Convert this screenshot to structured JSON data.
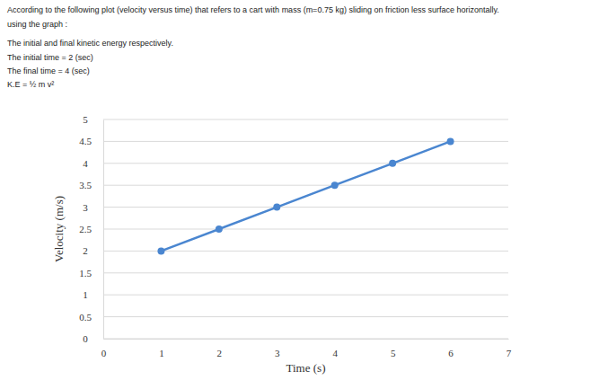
{
  "chart_data": {
    "type": "line",
    "annotations": [
      "According to the following plot (velocity versus time) that refers to a cart with mass (m=0.75 kg) sliding on friction less surface horizontally.",
      "using the graph :",
      "The initial and final kinetic energy respectively.",
      "The initial time = 2 (sec)",
      "The final time = 4 (sec)",
      "K.E = ½ m v²"
    ],
    "x_label": "Time (s)",
    "y_label": "Velocity (m/s)",
    "series": [
      {
        "name": "Velocity",
        "color": "#4a86d0",
        "marker": "circle",
        "x": [
          1,
          2,
          3,
          4,
          5,
          6
        ],
        "values": [
          2,
          2.5,
          3,
          3.5,
          4,
          4.5
        ]
      }
    ],
    "xlim": [
      0,
      7
    ],
    "xticks": [
      0,
      1,
      2,
      3,
      4,
      5,
      6,
      7
    ],
    "ylim": [
      0,
      5
    ],
    "yticks": [
      0,
      0.5,
      1,
      1.5,
      2,
      2.5,
      3,
      3.5,
      4,
      4.5,
      5
    ],
    "grid": true
  }
}
